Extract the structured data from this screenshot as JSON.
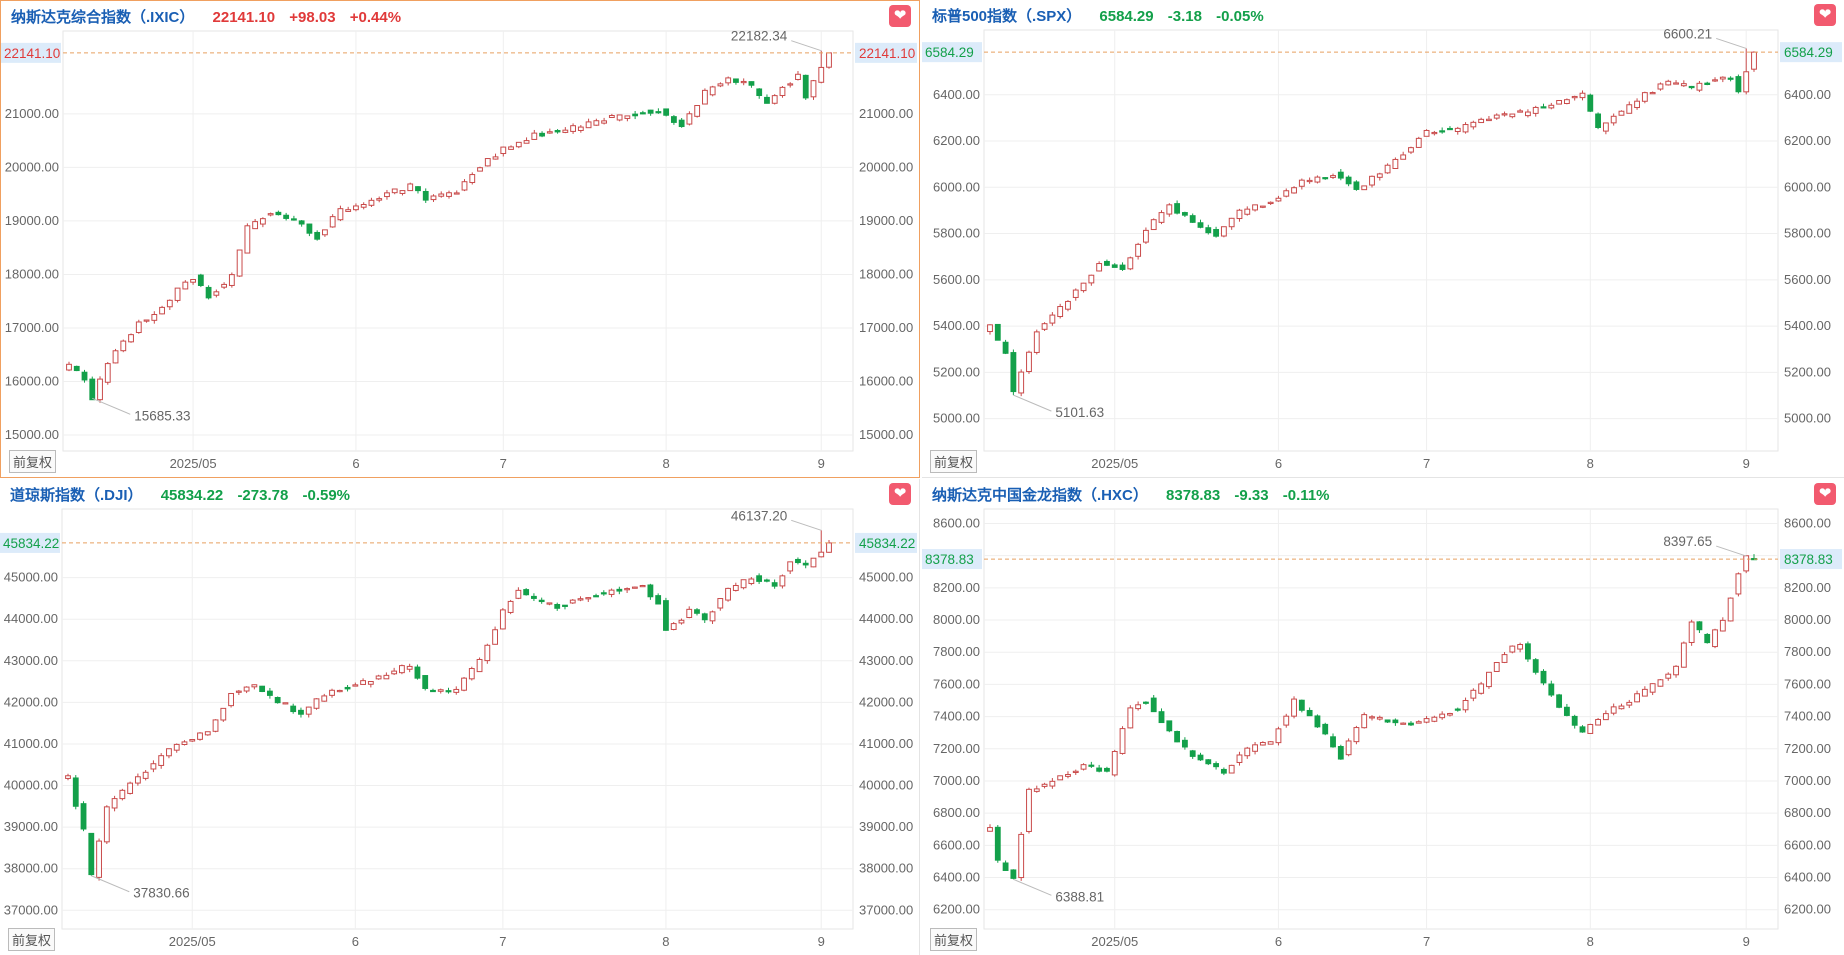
{
  "panels": [
    {
      "name": "纳斯达克综合指数（.IXIC）",
      "price": "22141.10",
      "change": "+98.03",
      "change_pct": "+0.44%",
      "direction": "up",
      "fav_icon": "heart-icon",
      "adjust_label": "前复权",
      "chart_data": {
        "type": "candlestick",
        "ylim": [
          14700,
          22550
        ],
        "y_ticks": [
          15000,
          16000,
          17000,
          18000,
          19000,
          20000,
          21000
        ],
        "y_tick_labels": [
          "15000.00",
          "16000.00",
          "17000.00",
          "18000.00",
          "19000.00",
          "20000.00",
          "21000.00"
        ],
        "x_tick_labels": [
          "2025/05",
          "6",
          "7",
          "8",
          "9"
        ],
        "x_tick_index": [
          16,
          37,
          56,
          77,
          97
        ],
        "n": 99,
        "anchors": [
          [
            0,
            16300
          ],
          [
            2,
            16050
          ],
          [
            3,
            15700
          ],
          [
            5,
            16350
          ],
          [
            9,
            17100
          ],
          [
            12,
            17350
          ],
          [
            14,
            17750
          ],
          [
            16,
            17950
          ],
          [
            18,
            17600
          ],
          [
            21,
            17950
          ],
          [
            23,
            18900
          ],
          [
            26,
            19150
          ],
          [
            29,
            19000
          ],
          [
            32,
            18700
          ],
          [
            35,
            19200
          ],
          [
            38,
            19300
          ],
          [
            42,
            19550
          ],
          [
            44,
            19650
          ],
          [
            46,
            19400
          ],
          [
            50,
            19550
          ],
          [
            52,
            19900
          ],
          [
            56,
            20350
          ],
          [
            60,
            20600
          ],
          [
            64,
            20700
          ],
          [
            68,
            20850
          ],
          [
            72,
            21000
          ],
          [
            76,
            21050
          ],
          [
            79,
            20800
          ],
          [
            82,
            21400
          ],
          [
            85,
            21700
          ],
          [
            88,
            21500
          ],
          [
            90,
            21200
          ],
          [
            92,
            21500
          ],
          [
            94,
            21700
          ],
          [
            95,
            21300
          ],
          [
            97,
            21900
          ],
          [
            98,
            22141
          ]
        ],
        "annotations": [
          {
            "text": "15685.33",
            "index": 3,
            "value": 15685.33,
            "pos": "low"
          },
          {
            "text": "22182.34",
            "index": 97,
            "value": 22182.34,
            "pos": "high"
          }
        ],
        "current": {
          "value": 22141.1,
          "label": "22141.10"
        }
      }
    },
    {
      "name": "标普500指数（.SPX）",
      "price": "6584.29",
      "change": "-3.18",
      "change_pct": "-0.05%",
      "direction": "down",
      "fav_icon": "heart-icon",
      "adjust_label": "前复权",
      "chart_data": {
        "type": "candlestick",
        "ylim": [
          4860,
          6680
        ],
        "y_ticks": [
          5000,
          5200,
          5400,
          5600,
          5800,
          6000,
          6200,
          6400
        ],
        "y_tick_labels": [
          "5000.00",
          "5200.00",
          "5400.00",
          "5600.00",
          "5800.00",
          "6000.00",
          "6200.00",
          "6400.00"
        ],
        "x_tick_labels": [
          "2025/05",
          "6",
          "7",
          "8",
          "9"
        ],
        "x_tick_index": [
          16,
          37,
          56,
          77,
          97
        ],
        "n": 99,
        "anchors": [
          [
            0,
            5400
          ],
          [
            2,
            5280
          ],
          [
            3,
            5110
          ],
          [
            6,
            5380
          ],
          [
            9,
            5480
          ],
          [
            12,
            5580
          ],
          [
            14,
            5680
          ],
          [
            17,
            5640
          ],
          [
            20,
            5820
          ],
          [
            23,
            5920
          ],
          [
            26,
            5850
          ],
          [
            29,
            5790
          ],
          [
            32,
            5890
          ],
          [
            36,
            5940
          ],
          [
            40,
            6020
          ],
          [
            44,
            6060
          ],
          [
            47,
            5990
          ],
          [
            50,
            6060
          ],
          [
            53,
            6150
          ],
          [
            56,
            6240
          ],
          [
            60,
            6250
          ],
          [
            64,
            6300
          ],
          [
            68,
            6320
          ],
          [
            72,
            6360
          ],
          [
            76,
            6400
          ],
          [
            78,
            6250
          ],
          [
            81,
            6330
          ],
          [
            84,
            6400
          ],
          [
            87,
            6460
          ],
          [
            90,
            6430
          ],
          [
            92,
            6450
          ],
          [
            95,
            6480
          ],
          [
            96,
            6420
          ],
          [
            98,
            6584
          ]
        ],
        "annotations": [
          {
            "text": "5101.63",
            "index": 3,
            "value": 5101.63,
            "pos": "low"
          },
          {
            "text": "6600.21",
            "index": 97,
            "value": 6600.21,
            "pos": "high"
          }
        ],
        "current": {
          "value": 6584.29,
          "label": "6584.29"
        }
      }
    },
    {
      "name": "道琼斯指数（.DJI）",
      "price": "45834.22",
      "change": "-273.78",
      "change_pct": "-0.59%",
      "direction": "down",
      "fav_icon": "heart-icon",
      "adjust_label": "前复权",
      "chart_data": {
        "type": "candlestick",
        "ylim": [
          36550,
          46650
        ],
        "y_ticks": [
          37000,
          38000,
          39000,
          40000,
          41000,
          42000,
          43000,
          44000,
          45000
        ],
        "y_tick_labels": [
          "37000.00",
          "38000.00",
          "39000.00",
          "40000.00",
          "41000.00",
          "42000.00",
          "43000.00",
          "44000.00",
          "45000.00"
        ],
        "x_tick_labels": [
          "2025/05",
          "6",
          "7",
          "8",
          "9"
        ],
        "x_tick_index": [
          16,
          37,
          56,
          77,
          97
        ],
        "n": 99,
        "anchors": [
          [
            0,
            40200
          ],
          [
            2,
            38900
          ],
          [
            3,
            37850
          ],
          [
            5,
            39500
          ],
          [
            8,
            40000
          ],
          [
            12,
            40700
          ],
          [
            15,
            41100
          ],
          [
            18,
            41300
          ],
          [
            21,
            42200
          ],
          [
            24,
            42400
          ],
          [
            27,
            42050
          ],
          [
            30,
            41700
          ],
          [
            33,
            42200
          ],
          [
            37,
            42400
          ],
          [
            41,
            42700
          ],
          [
            44,
            42900
          ],
          [
            46,
            42300
          ],
          [
            50,
            42300
          ],
          [
            53,
            43000
          ],
          [
            56,
            44200
          ],
          [
            58,
            44700
          ],
          [
            61,
            44400
          ],
          [
            63,
            44300
          ],
          [
            66,
            44500
          ],
          [
            70,
            44700
          ],
          [
            74,
            44800
          ],
          [
            76,
            44400
          ],
          [
            77,
            43700
          ],
          [
            80,
            44200
          ],
          [
            82,
            44000
          ],
          [
            85,
            44700
          ],
          [
            88,
            45000
          ],
          [
            91,
            44800
          ],
          [
            93,
            45400
          ],
          [
            95,
            45300
          ],
          [
            97,
            45600
          ],
          [
            98,
            45834
          ]
        ],
        "annotations": [
          {
            "text": "37830.66",
            "index": 3,
            "value": 37830.66,
            "pos": "low"
          },
          {
            "text": "46137.20",
            "index": 97,
            "value": 46137.2,
            "pos": "high"
          }
        ],
        "current": {
          "value": 45834.22,
          "label": "45834.22"
        }
      }
    },
    {
      "name": "纳斯达克中国金龙指数（.HXC）",
      "price": "8378.83",
      "change": "-9.33",
      "change_pct": "-0.11%",
      "direction": "down",
      "fav_icon": "heart-icon",
      "adjust_label": "前复权",
      "chart_data": {
        "type": "candlestick",
        "ylim": [
          6080,
          8690
        ],
        "y_ticks": [
          6200,
          6400,
          6600,
          6800,
          7000,
          7200,
          7400,
          7600,
          7800,
          8000,
          8200,
          8400,
          8600
        ],
        "y_tick_labels": [
          "6200.00",
          "6400.00",
          "6600.00",
          "6800.00",
          "7000.00",
          "7200.00",
          "7400.00",
          "7600.00",
          "7800.00",
          "8000.00",
          "8200.00",
          "8400.00",
          "8600.00"
        ],
        "x_tick_labels": [
          "2025/05",
          "6",
          "7",
          "8",
          "9"
        ],
        "x_tick_index": [
          16,
          37,
          56,
          77,
          97
        ],
        "n": 99,
        "anchors": [
          [
            0,
            6700
          ],
          [
            1,
            6500
          ],
          [
            2,
            6450
          ],
          [
            3,
            6400
          ],
          [
            5,
            6950
          ],
          [
            7,
            6980
          ],
          [
            9,
            7020
          ],
          [
            12,
            7100
          ],
          [
            15,
            7050
          ],
          [
            18,
            7450
          ],
          [
            20,
            7500
          ],
          [
            23,
            7300
          ],
          [
            26,
            7150
          ],
          [
            30,
            7050
          ],
          [
            33,
            7200
          ],
          [
            36,
            7250
          ],
          [
            39,
            7500
          ],
          [
            42,
            7350
          ],
          [
            45,
            7150
          ],
          [
            48,
            7400
          ],
          [
            51,
            7380
          ],
          [
            54,
            7350
          ],
          [
            57,
            7400
          ],
          [
            60,
            7450
          ],
          [
            63,
            7600
          ],
          [
            66,
            7800
          ],
          [
            68,
            7850
          ],
          [
            71,
            7600
          ],
          [
            74,
            7400
          ],
          [
            76,
            7300
          ],
          [
            79,
            7420
          ],
          [
            82,
            7500
          ],
          [
            85,
            7600
          ],
          [
            88,
            7700
          ],
          [
            90,
            8000
          ],
          [
            92,
            7850
          ],
          [
            94,
            8000
          ],
          [
            96,
            8300
          ],
          [
            97,
            8390
          ],
          [
            98,
            8379
          ]
        ],
        "annotations": [
          {
            "text": "6388.81",
            "index": 3,
            "value": 6388.81,
            "pos": "low"
          },
          {
            "text": "8397.65",
            "index": 97,
            "value": 8397.65,
            "pos": "high"
          }
        ],
        "current": {
          "value": 8378.83,
          "label": "8378.83"
        }
      }
    }
  ]
}
